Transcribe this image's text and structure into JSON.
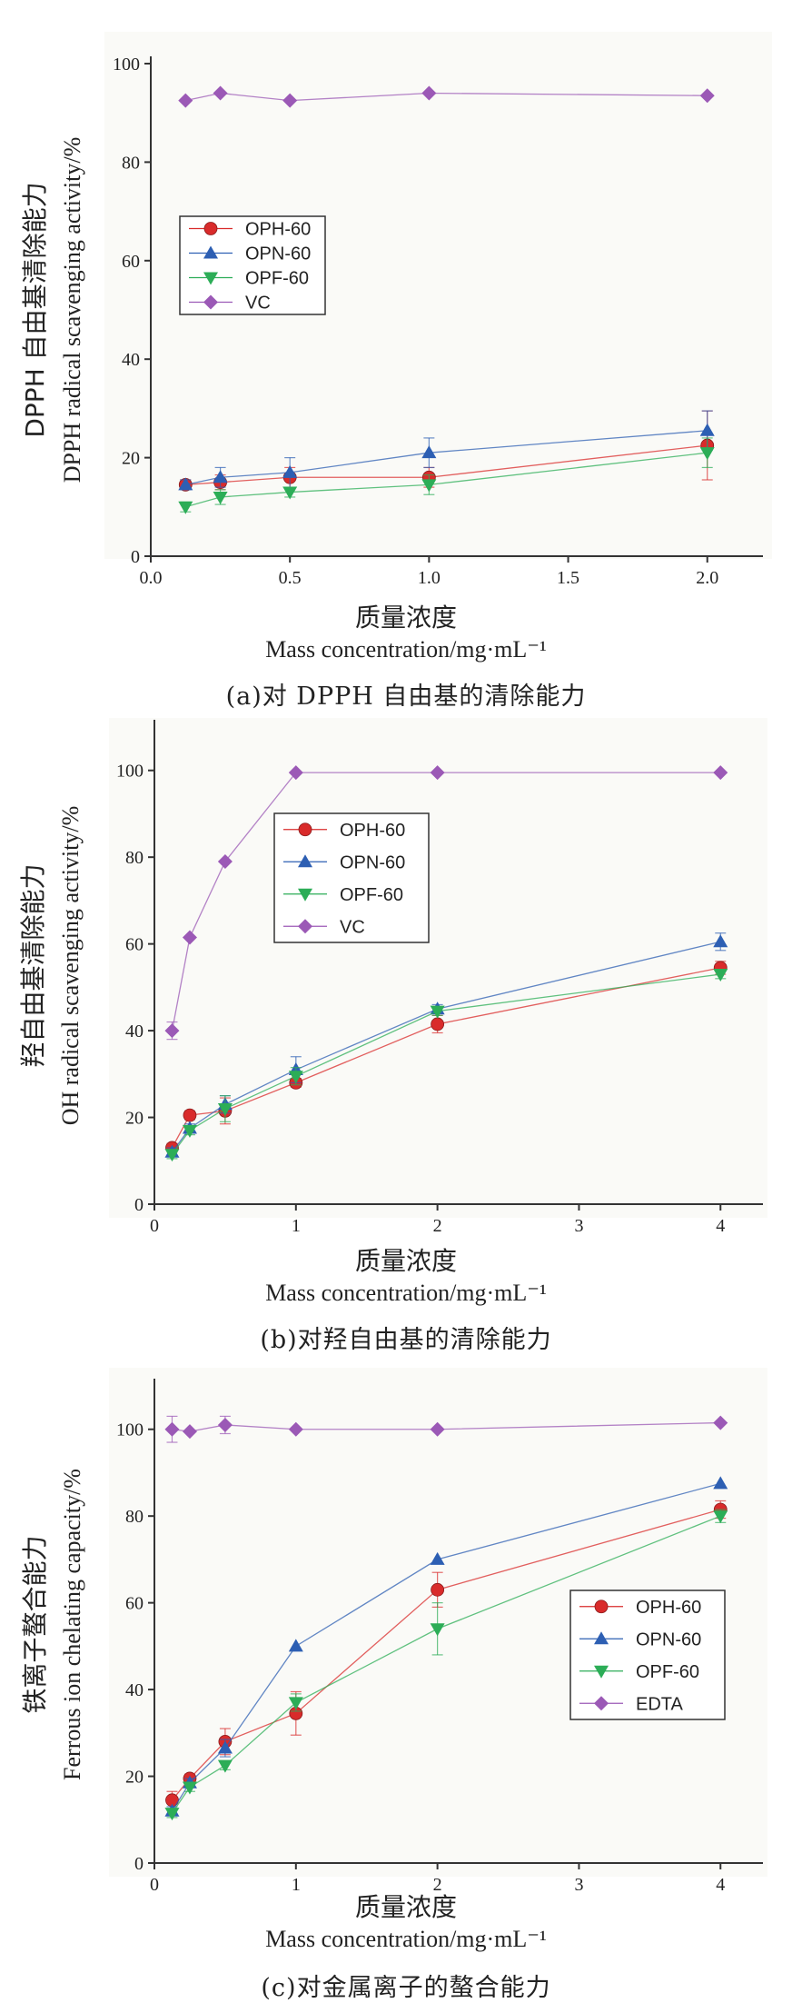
{
  "chart_data": [
    {
      "type": "line",
      "ylabel_cn": "DPPH 自由基清除能力",
      "ylabel": "DPPH radical scavenging activity/%",
      "xlabel_cn": "质量浓度",
      "xlabel": "Mass concentration/mg·mL⁻¹",
      "caption": "(a)对 DPPH 自由基的清除能力",
      "xlim": [
        0,
        2.2
      ],
      "ylim": [
        0,
        100
      ],
      "xticks": [
        0.0,
        0.5,
        1.0,
        1.5,
        2.0
      ],
      "xtick_labels": [
        "0.0",
        "0.5",
        "1.0",
        "1.5",
        "2.0"
      ],
      "yticks": [
        0,
        20,
        40,
        60,
        80,
        100
      ],
      "legend_position": "center-left",
      "x": [
        0.125,
        0.25,
        0.5,
        1.0,
        2.0
      ],
      "series": [
        {
          "name": "OPH-60",
          "color": "#d92b2b",
          "marker": "circle",
          "values": [
            14.5,
            15,
            16,
            16,
            22.5
          ],
          "errors": [
            1,
            1.5,
            2,
            2,
            7
          ]
        },
        {
          "name": "OPN-60",
          "color": "#2d5fb3",
          "marker": "triangle-up",
          "values": [
            14.5,
            16,
            17,
            21,
            25.5
          ],
          "errors": [
            1,
            2,
            3,
            3,
            4
          ]
        },
        {
          "name": "OPF-60",
          "color": "#2cad57",
          "marker": "triangle-down",
          "values": [
            10,
            12,
            13,
            14.5,
            21
          ],
          "errors": [
            1,
            1.5,
            1,
            2,
            3
          ]
        },
        {
          "name": "VC",
          "color": "#9b59b6",
          "marker": "diamond",
          "values": [
            92.5,
            94,
            92.5,
            94,
            93.5
          ],
          "errors": [
            0,
            0,
            0,
            0,
            0
          ]
        }
      ]
    },
    {
      "type": "line",
      "ylabel_cn": "羟自由基清除能力",
      "ylabel": "OH radical scavenging activity/%",
      "xlabel_cn": "质量浓度",
      "xlabel": "Mass concentration/mg·mL⁻¹",
      "caption": "(b)对羟自由基的清除能力",
      "xlim": [
        0,
        4.3
      ],
      "ylim": [
        0,
        110
      ],
      "xticks": [
        0,
        1,
        2,
        3,
        4
      ],
      "xtick_labels": [
        "0",
        "1",
        "2",
        "3",
        "4"
      ],
      "yticks": [
        0,
        20,
        40,
        60,
        80,
        100
      ],
      "legend_position": "upper-center",
      "x": [
        0.125,
        0.25,
        0.5,
        1,
        2,
        4
      ],
      "series": [
        {
          "name": "OPH-60",
          "color": "#d92b2b",
          "marker": "circle",
          "values": [
            13,
            20.5,
            21.5,
            28,
            41.5,
            54.5
          ],
          "errors": [
            1,
            1,
            3,
            1,
            2,
            1.5
          ]
        },
        {
          "name": "OPN-60",
          "color": "#2d5fb3",
          "marker": "triangle-up",
          "values": [
            12,
            17.5,
            23,
            31,
            45,
            60.5
          ],
          "errors": [
            1,
            1,
            2,
            3,
            1,
            2
          ]
        },
        {
          "name": "OPF-60",
          "color": "#2cad57",
          "marker": "triangle-down",
          "values": [
            11.5,
            17,
            22,
            29.5,
            44.5,
            53
          ],
          "errors": [
            1,
            1,
            3,
            2,
            1,
            1
          ]
        },
        {
          "name": "VC",
          "color": "#9b59b6",
          "marker": "diamond",
          "values": [
            40,
            61.5,
            79,
            99.5,
            99.5,
            99.5
          ],
          "errors": [
            2,
            0,
            0,
            0,
            0,
            0
          ]
        }
      ]
    },
    {
      "type": "line",
      "ylabel_cn": "铁离子螯合能力",
      "ylabel": "Ferrous ion chelating capacity/%",
      "xlabel_cn": "质量浓度",
      "xlabel": "Mass concentration/mg·mL⁻¹",
      "caption": "(c)对金属离子的螯合能力",
      "xlim": [
        0,
        4.3
      ],
      "ylim": [
        0,
        110
      ],
      "xticks": [
        0,
        1,
        2,
        3,
        4
      ],
      "xtick_labels": [
        "0",
        "1",
        "2",
        "3",
        "4"
      ],
      "yticks": [
        0,
        20,
        40,
        60,
        80,
        100
      ],
      "legend_position": "lower-right",
      "x": [
        0.125,
        0.25,
        0.5,
        1,
        2,
        4
      ],
      "series": [
        {
          "name": "OPH-60",
          "color": "#d92b2b",
          "marker": "circle",
          "values": [
            14.5,
            19.5,
            28,
            34.5,
            63,
            81.5
          ],
          "errors": [
            2,
            1,
            3,
            5,
            4,
            2
          ]
        },
        {
          "name": "OPN-60",
          "color": "#2d5fb3",
          "marker": "triangle-up",
          "values": [
            12,
            18.5,
            26.5,
            50,
            70,
            87.5
          ],
          "errors": [
            1,
            1,
            2,
            0,
            0,
            0
          ]
        },
        {
          "name": "OPF-60",
          "color": "#2cad57",
          "marker": "triangle-down",
          "values": [
            11.5,
            17.5,
            22.5,
            37,
            54,
            80
          ],
          "errors": [
            1,
            1,
            1,
            2,
            6,
            1.5
          ]
        },
        {
          "name": "EDTA",
          "color": "#9b59b6",
          "marker": "diamond",
          "values": [
            100,
            99.5,
            101,
            100,
            100,
            101.5
          ],
          "errors": [
            3,
            0,
            2,
            0,
            0,
            0
          ]
        }
      ]
    }
  ]
}
